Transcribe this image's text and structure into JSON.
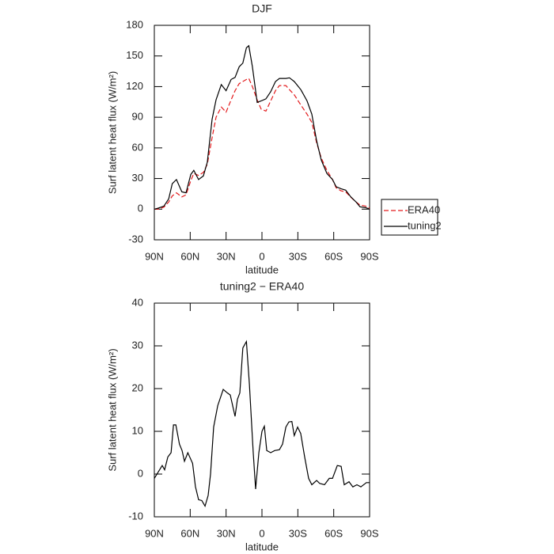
{
  "chart_data": [
    {
      "type": "line",
      "title": "DJF",
      "xlabel": "latitude",
      "ylabel": "Surf latent heat flux (W/m²)",
      "x": [
        90,
        86.7,
        82,
        78,
        75,
        71.5,
        67,
        63.5,
        59.5,
        57,
        53,
        49,
        45.7,
        41.7,
        38.4,
        34,
        30,
        25.8,
        22.5,
        19,
        16,
        13,
        11,
        8,
        4,
        0.7,
        -3.3,
        -7.3,
        -11.3,
        -14.6,
        -20,
        -23,
        -27,
        -32.5,
        -37.7,
        -41.7,
        -45.7,
        -49.6,
        -54.3,
        -59,
        -62,
        -66,
        -70,
        -74,
        -78.7,
        -82,
        -86.7,
        -90
      ],
      "series": [
        {
          "name": "ERA40",
          "color": "#e31a1c",
          "dash": true,
          "values": [
            0,
            0,
            2,
            7,
            13,
            16,
            12,
            14,
            28,
            35,
            33,
            36,
            44,
            70,
            90,
            100,
            95,
            107,
            116,
            123,
            125,
            127,
            128,
            120,
            107,
            98,
            96,
            106,
            116,
            121,
            121,
            117,
            112,
            102,
            93,
            85,
            65,
            50,
            38,
            29,
            21,
            18,
            17,
            12,
            7,
            4,
            3,
            1
          ]
        },
        {
          "name": "tuning2",
          "color": "#000000",
          "dash": false,
          "values": [
            0,
            1,
            3,
            10,
            25,
            29,
            17,
            16,
            34,
            38,
            29,
            32.5,
            46,
            88,
            107,
            122,
            116,
            127,
            129,
            139.5,
            143,
            158,
            160,
            139.5,
            104.5,
            106,
            108,
            115,
            125,
            128,
            128,
            128.6,
            125,
            117,
            106,
            93,
            67,
            48,
            35,
            29,
            22,
            20,
            18.6,
            12.4,
            7,
            2.3,
            1.5,
            0
          ]
        }
      ],
      "xlim": [
        90,
        -90
      ],
      "xticks": [
        {
          "value": 90,
          "label": "90N"
        },
        {
          "value": 60,
          "label": "60N"
        },
        {
          "value": 30,
          "label": "30N"
        },
        0,
        {
          "value": -30,
          "label": "30S"
        },
        {
          "value": -60,
          "label": "60S"
        },
        {
          "value": -90,
          "label": "90S"
        }
      ],
      "ylim": [
        -30,
        180
      ],
      "yticks": [
        -30,
        0,
        30,
        60,
        90,
        120,
        150,
        180
      ],
      "legend": "right"
    },
    {
      "type": "line",
      "title": "tuning2 − ERA40",
      "xlabel": "latitude",
      "ylabel": "Surf latent heat flux (W/m²)",
      "x": [
        90,
        83.4,
        81.4,
        78.7,
        76,
        74,
        72,
        69,
        66.8,
        64.8,
        62,
        58,
        55.6,
        53,
        50.3,
        47.6,
        45,
        43,
        40.4,
        37,
        32.4,
        29,
        26.5,
        22.5,
        20.5,
        18.5,
        16,
        13,
        10.5,
        7.3,
        5.3,
        2.6,
        0,
        -2,
        -4,
        -7.3,
        -10.6,
        -14.6,
        -17.2,
        -20,
        -22.5,
        -25,
        -27,
        -29.8,
        -32.4,
        -35.7,
        -39,
        -41.7,
        -45.7,
        -48.3,
        -52.3,
        -56.3,
        -59,
        -63,
        -66.2,
        -68.8,
        -72.8,
        -76,
        -79.4,
        -82.7,
        -87.3,
        -90
      ],
      "series": [
        {
          "color": "#000000",
          "dash": false,
          "values": [
            -1,
            2,
            1,
            4,
            5,
            11.5,
            11.5,
            7,
            5.5,
            3,
            5,
            2.5,
            -3,
            -6,
            -6.2,
            -7.5,
            -5,
            0,
            11,
            16,
            19.8,
            19,
            18.5,
            13.5,
            17.5,
            19,
            29.5,
            31,
            21,
            5,
            -3.5,
            5,
            10,
            11.2,
            5.5,
            5,
            5.5,
            5.7,
            7,
            11,
            12.2,
            12.3,
            9,
            11,
            9.5,
            4,
            -1,
            -2.5,
            -1.5,
            -2.2,
            -2.5,
            -1,
            -1,
            2,
            1.8,
            -2.5,
            -1.8,
            -3,
            -2.5,
            -3,
            -2,
            -2
          ]
        }
      ],
      "xlim": [
        90,
        -90
      ],
      "xticks": [
        {
          "value": 90,
          "label": "90N"
        },
        {
          "value": 60,
          "label": "60N"
        },
        {
          "value": 30,
          "label": "30N"
        },
        0,
        {
          "value": -30,
          "label": "30S"
        },
        {
          "value": -60,
          "label": "60S"
        },
        {
          "value": -90,
          "label": "90S"
        }
      ],
      "ylim": [
        -10,
        40
      ],
      "yticks": [
        -10,
        0,
        10,
        20,
        30,
        40
      ]
    }
  ]
}
